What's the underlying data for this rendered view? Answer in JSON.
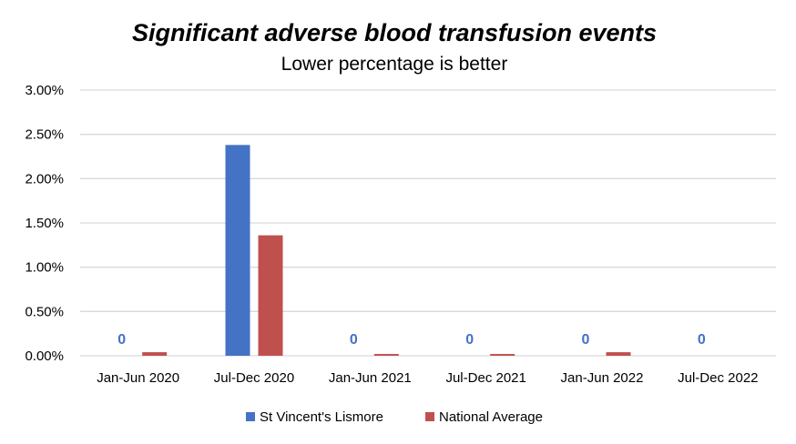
{
  "chart_data": {
    "type": "bar",
    "title": "Significant adverse blood transfusion events",
    "subtitle": "Lower percentage is better",
    "categories": [
      "Jan-Jun 2020",
      "Jul-Dec 2020",
      "Jan-Jun 2021",
      "Jul-Dec 2021",
      "Jan-Jun 2022",
      "Jul-Dec 2022"
    ],
    "series": [
      {
        "name": "St Vincent's Lismore",
        "color": "#4472C4",
        "values": [
          0,
          2.38,
          0,
          0,
          0,
          0
        ],
        "data_labels": [
          "0",
          "",
          "0",
          "0",
          "0",
          "0"
        ]
      },
      {
        "name": "National Average",
        "color": "#C0504D",
        "values": [
          0.04,
          1.36,
          0.02,
          0.02,
          0.04,
          0
        ]
      }
    ],
    "ylim": [
      0,
      3.0
    ],
    "yticks": [
      "0.00%",
      "0.50%",
      "1.00%",
      "1.50%",
      "2.00%",
      "2.50%",
      "3.00%"
    ],
    "ytick_values": [
      0,
      0.5,
      1.0,
      1.5,
      2.0,
      2.5,
      3.0
    ],
    "xlabel": "",
    "ylabel": "",
    "grid": true,
    "legend_position": "bottom"
  }
}
